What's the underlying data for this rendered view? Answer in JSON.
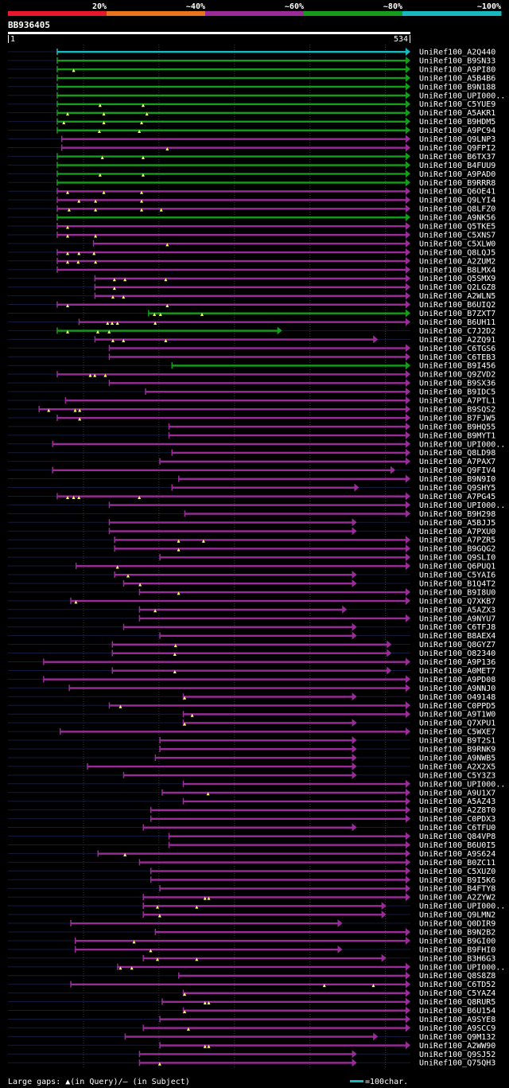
{
  "chart_data": {
    "type": "alignment-overview",
    "query_id": "BB936405",
    "query_length": 534,
    "axis_start_label": "1",
    "axis_end_label": "534",
    "identity_legend": [
      {
        "label": "20%",
        "color": "#e8172d"
      },
      {
        "label": "~40%",
        "color": "#e8741c"
      },
      {
        "label": "~60%",
        "color": "#9a2c9a"
      },
      {
        "label": "~80%",
        "color": "#159c1a"
      },
      {
        "label": "~100%",
        "color": "#19b8c0"
      }
    ],
    "footer_left": "Large gaps: ▲(in Query)/— (in Subject)",
    "footer_right": "=100char.",
    "hits": [
      {
        "id": "UniRef100_A2Q440",
        "start": 66,
        "end": 534,
        "color": "#19b8c0",
        "marks": []
      },
      {
        "id": "UniRef100_B9SN33",
        "start": 66,
        "end": 534,
        "color": "#159c1a",
        "marks": []
      },
      {
        "id": "UniRef100_A9PI80",
        "start": 66,
        "end": 534,
        "color": "#159c1a",
        "marks": [
          88
        ]
      },
      {
        "id": "UniRef100_A5B4B6",
        "start": 66,
        "end": 534,
        "color": "#159c1a",
        "marks": []
      },
      {
        "id": "UniRef100_B9N188",
        "start": 66,
        "end": 534,
        "color": "#159c1a",
        "marks": []
      },
      {
        "id": "UniRef100_UPI000..",
        "start": 66,
        "end": 534,
        "color": "#159c1a",
        "marks": []
      },
      {
        "id": "UniRef100_C5YUE9",
        "start": 66,
        "end": 534,
        "color": "#159c1a",
        "marks": [
          123,
          180
        ]
      },
      {
        "id": "UniRef100_A5AKR1",
        "start": 66,
        "end": 534,
        "color": "#159c1a",
        "marks": [
          80,
          128,
          185
        ]
      },
      {
        "id": "UniRef100_B9HDM5",
        "start": 66,
        "end": 534,
        "color": "#159c1a",
        "marks": [
          75,
          128,
          178
        ]
      },
      {
        "id": "UniRef100_A9PC94",
        "start": 66,
        "end": 534,
        "color": "#159c1a",
        "marks": [
          122,
          175
        ]
      },
      {
        "id": "UniRef100_Q9LNP3",
        "start": 72,
        "end": 534,
        "color": "#9a2c9a",
        "marks": []
      },
      {
        "id": "UniRef100_Q9FPI2",
        "start": 72,
        "end": 534,
        "color": "#9a2c9a",
        "marks": [
          212
        ]
      },
      {
        "id": "UniRef100_B6TX37",
        "start": 66,
        "end": 534,
        "color": "#159c1a",
        "marks": [
          126,
          180
        ]
      },
      {
        "id": "UniRef100_B4FUU9",
        "start": 66,
        "end": 534,
        "color": "#159c1a",
        "marks": []
      },
      {
        "id": "UniRef100_A9PAD0",
        "start": 66,
        "end": 534,
        "color": "#159c1a",
        "marks": [
          123,
          180
        ]
      },
      {
        "id": "UniRef100_B9RRR8",
        "start": 66,
        "end": 534,
        "color": "#159c1a",
        "marks": []
      },
      {
        "id": "UniRef100_Q6OE41",
        "start": 66,
        "end": 534,
        "color": "#9a2c9a",
        "marks": [
          80,
          128,
          178
        ]
      },
      {
        "id": "UniRef100_Q9LYI4",
        "start": 66,
        "end": 534,
        "color": "#9a2c9a",
        "marks": [
          95,
          117,
          178
        ]
      },
      {
        "id": "UniRef100_Q8LFZ0",
        "start": 66,
        "end": 534,
        "color": "#9a2c9a",
        "marks": [
          82,
          117,
          178,
          204
        ]
      },
      {
        "id": "UniRef100_A9NK56",
        "start": 66,
        "end": 534,
        "color": "#159c1a",
        "marks": []
      },
      {
        "id": "UniRef100_Q5TKE5",
        "start": 66,
        "end": 534,
        "color": "#9a2c9a",
        "marks": [
          80
        ]
      },
      {
        "id": "UniRef100_C5XNS7",
        "start": 66,
        "end": 534,
        "color": "#9a2c9a",
        "marks": [
          80,
          117
        ]
      },
      {
        "id": "UniRef100_C5XLW0",
        "start": 114,
        "end": 534,
        "color": "#9a2c9a",
        "marks": [
          212
        ]
      },
      {
        "id": "UniRef100_Q8LQJ5",
        "start": 66,
        "end": 534,
        "color": "#9a2c9a",
        "marks": [
          80,
          95,
          115
        ]
      },
      {
        "id": "UniRef100_A2ZUM2",
        "start": 66,
        "end": 534,
        "color": "#9a2c9a",
        "marks": [
          80,
          94,
          117
        ]
      },
      {
        "id": "UniRef100_B8LMX4",
        "start": 66,
        "end": 534,
        "color": "#9a2c9a",
        "marks": []
      },
      {
        "id": "UniRef100_Q5SMX9",
        "start": 116,
        "end": 534,
        "color": "#9a2c9a",
        "marks": [
          142,
          156,
          210
        ]
      },
      {
        "id": "UniRef100_Q2LGZ8",
        "start": 116,
        "end": 534,
        "color": "#9a2c9a",
        "marks": [
          142
        ]
      },
      {
        "id": "UniRef100_A2WLN5",
        "start": 116,
        "end": 534,
        "color": "#9a2c9a",
        "marks": [
          140,
          154
        ]
      },
      {
        "id": "UniRef100_B6UIQ2",
        "start": 66,
        "end": 534,
        "color": "#9a2c9a",
        "marks": [
          80,
          212
        ]
      },
      {
        "id": "UniRef100_B7ZXT7",
        "start": 187,
        "end": 534,
        "color": "#159c1a",
        "marks": [
          195,
          203,
          258
        ]
      },
      {
        "id": "UniRef100_B6UH11",
        "start": 95,
        "end": 534,
        "color": "#9a2c9a",
        "marks": [
          133,
          139,
          146,
          196
        ]
      },
      {
        "id": "UniRef100_C7J2D2",
        "start": 66,
        "end": 364,
        "color": "#159c1a",
        "marks": [
          80,
          120,
          135
        ]
      },
      {
        "id": "UniRef100_A2ZQ91",
        "start": 116,
        "end": 491,
        "color": "#9a2c9a",
        "marks": [
          140,
          154,
          210
        ]
      },
      {
        "id": "UniRef100_C6TGS6",
        "start": 135,
        "end": 534,
        "color": "#9a2c9a",
        "marks": []
      },
      {
        "id": "UniRef100_C6TEB3",
        "start": 135,
        "end": 534,
        "color": "#9a2c9a",
        "marks": []
      },
      {
        "id": "UniRef100_B9I456",
        "start": 218,
        "end": 534,
        "color": "#159c1a",
        "marks": []
      },
      {
        "id": "UniRef100_Q9ZVD2",
        "start": 66,
        "end": 534,
        "color": "#9a2c9a",
        "marks": [
          110,
          116,
          130
        ]
      },
      {
        "id": "UniRef100_B9SX36",
        "start": 135,
        "end": 534,
        "color": "#9a2c9a",
        "marks": []
      },
      {
        "id": "UniRef100_B9IDC5",
        "start": 183,
        "end": 534,
        "color": "#9a2c9a",
        "marks": []
      },
      {
        "id": "UniRef100_A7PTL1",
        "start": 77,
        "end": 534,
        "color": "#9a2c9a",
        "marks": []
      },
      {
        "id": "UniRef100_B9SQS2",
        "start": 42,
        "end": 534,
        "color": "#9a2c9a",
        "marks": [
          55,
          90,
          96
        ]
      },
      {
        "id": "UniRef100_B7FJW5",
        "start": 66,
        "end": 534,
        "color": "#9a2c9a",
        "marks": [
          96
        ]
      },
      {
        "id": "UniRef100_B9HQ55",
        "start": 214,
        "end": 534,
        "color": "#9a2c9a",
        "marks": []
      },
      {
        "id": "UniRef100_B9MYT1",
        "start": 214,
        "end": 534,
        "color": "#9a2c9a",
        "marks": []
      },
      {
        "id": "UniRef100_UPI000..",
        "start": 60,
        "end": 534,
        "color": "#9a2c9a",
        "marks": []
      },
      {
        "id": "UniRef100_Q8LD98",
        "start": 218,
        "end": 534,
        "color": "#9a2c9a",
        "marks": []
      },
      {
        "id": "UniRef100_A7PAX7",
        "start": 202,
        "end": 534,
        "color": "#9a2c9a",
        "marks": []
      },
      {
        "id": "UniRef100_Q9FIV4",
        "start": 60,
        "end": 514,
        "color": "#9a2c9a",
        "marks": []
      },
      {
        "id": "UniRef100_B9N9I0",
        "start": 227,
        "end": 534,
        "color": "#9a2c9a",
        "marks": []
      },
      {
        "id": "UniRef100_Q9SHY5",
        "start": 218,
        "end": 466,
        "color": "#9a2c9a",
        "marks": []
      },
      {
        "id": "UniRef100_A7PG45",
        "start": 66,
        "end": 534,
        "color": "#9a2c9a",
        "marks": [
          80,
          88,
          95,
          175
        ]
      },
      {
        "id": "UniRef100_UPI000..",
        "start": 135,
        "end": 534,
        "color": "#9a2c9a",
        "marks": []
      },
      {
        "id": "UniRef100_B9H298",
        "start": 235,
        "end": 534,
        "color": "#9a2c9a",
        "marks": []
      },
      {
        "id": "UniRef100_A5BJJ5",
        "start": 135,
        "end": 463,
        "color": "#9a2c9a",
        "marks": []
      },
      {
        "id": "UniRef100_A7PXU0",
        "start": 135,
        "end": 463,
        "color": "#9a2c9a",
        "marks": []
      },
      {
        "id": "UniRef100_A7PZR5",
        "start": 142,
        "end": 534,
        "color": "#9a2c9a",
        "marks": [
          227,
          260
        ]
      },
      {
        "id": "UniRef100_B9GQG2",
        "start": 142,
        "end": 534,
        "color": "#9a2c9a",
        "marks": [
          227
        ]
      },
      {
        "id": "UniRef100_Q9SLI0",
        "start": 202,
        "end": 534,
        "color": "#9a2c9a",
        "marks": []
      },
      {
        "id": "UniRef100_Q6PUQ1",
        "start": 91,
        "end": 534,
        "color": "#9a2c9a",
        "marks": [
          146
        ]
      },
      {
        "id": "UniRef100_C5YAI6",
        "start": 142,
        "end": 463,
        "color": "#9a2c9a",
        "marks": [
          160
        ]
      },
      {
        "id": "UniRef100_B1Q4T2",
        "start": 154,
        "end": 463,
        "color": "#9a2c9a",
        "marks": [
          176
        ]
      },
      {
        "id": "UniRef100_B9I8U0",
        "start": 175,
        "end": 534,
        "color": "#9a2c9a",
        "marks": [
          227
        ]
      },
      {
        "id": "UniRef100_Q7XKB7",
        "start": 84,
        "end": 534,
        "color": "#9a2c9a",
        "marks": [
          91
        ]
      },
      {
        "id": "UniRef100_A5AZX3",
        "start": 175,
        "end": 450,
        "color": "#9a2c9a",
        "marks": [
          196
        ]
      },
      {
        "id": "UniRef100_A9NYU7",
        "start": 175,
        "end": 534,
        "color": "#9a2c9a",
        "marks": []
      },
      {
        "id": "UniRef100_C6TFJ8",
        "start": 154,
        "end": 463,
        "color": "#9a2c9a",
        "marks": []
      },
      {
        "id": "UniRef100_B8AEX4",
        "start": 202,
        "end": 463,
        "color": "#9a2c9a",
        "marks": []
      },
      {
        "id": "UniRef100_Q8GYZ7",
        "start": 139,
        "end": 509,
        "color": "#9a2c9a",
        "marks": [
          223
        ]
      },
      {
        "id": "UniRef100_O82340",
        "start": 139,
        "end": 509,
        "color": "#9a2c9a",
        "marks": [
          222
        ]
      },
      {
        "id": "UniRef100_A9P136",
        "start": 48,
        "end": 534,
        "color": "#9a2c9a",
        "marks": []
      },
      {
        "id": "UniRef100_A0MET7",
        "start": 139,
        "end": 509,
        "color": "#9a2c9a",
        "marks": [
          222
        ]
      },
      {
        "id": "UniRef100_A9PD08",
        "start": 48,
        "end": 534,
        "color": "#9a2c9a",
        "marks": []
      },
      {
        "id": "UniRef100_A9NNJ0",
        "start": 82,
        "end": 534,
        "color": "#9a2c9a",
        "marks": []
      },
      {
        "id": "UniRef100_O49148",
        "start": 233,
        "end": 463,
        "color": "#9a2c9a",
        "marks": [
          235
        ]
      },
      {
        "id": "UniRef100_C0PPD5",
        "start": 135,
        "end": 534,
        "color": "#9a2c9a",
        "marks": [
          150
        ]
      },
      {
        "id": "UniRef100_A9T1W0",
        "start": 233,
        "end": 534,
        "color": "#9a2c9a",
        "marks": [
          245
        ]
      },
      {
        "id": "UniRef100_Q7XPU1",
        "start": 233,
        "end": 463,
        "color": "#9a2c9a",
        "marks": [
          235
        ]
      },
      {
        "id": "UniRef100_C5WXE7",
        "start": 70,
        "end": 534,
        "color": "#9a2c9a",
        "marks": []
      },
      {
        "id": "UniRef100_B9T2S1",
        "start": 202,
        "end": 463,
        "color": "#9a2c9a",
        "marks": []
      },
      {
        "id": "UniRef100_B9RNK9",
        "start": 202,
        "end": 463,
        "color": "#9a2c9a",
        "marks": []
      },
      {
        "id": "UniRef100_A9NWB5",
        "start": 196,
        "end": 463,
        "color": "#9a2c9a",
        "marks": []
      },
      {
        "id": "UniRef100_A2X2X5",
        "start": 106,
        "end": 463,
        "color": "#9a2c9a",
        "marks": []
      },
      {
        "id": "UniRef100_C5Y3Z3",
        "start": 154,
        "end": 463,
        "color": "#9a2c9a",
        "marks": []
      },
      {
        "id": "UniRef100_UPI000..",
        "start": 233,
        "end": 534,
        "color": "#9a2c9a",
        "marks": []
      },
      {
        "id": "UniRef100_A9U1X7",
        "start": 205,
        "end": 534,
        "color": "#9a2c9a",
        "marks": [
          266
        ]
      },
      {
        "id": "UniRef100_A5AZ43",
        "start": 233,
        "end": 534,
        "color": "#9a2c9a",
        "marks": []
      },
      {
        "id": "UniRef100_A2Z8T0",
        "start": 190,
        "end": 534,
        "color": "#9a2c9a",
        "marks": []
      },
      {
        "id": "UniRef100_C0PDX3",
        "start": 190,
        "end": 534,
        "color": "#9a2c9a",
        "marks": []
      },
      {
        "id": "UniRef100_C6TFU0",
        "start": 180,
        "end": 463,
        "color": "#9a2c9a",
        "marks": []
      },
      {
        "id": "UniRef100_Q84VP8",
        "start": 214,
        "end": 534,
        "color": "#9a2c9a",
        "marks": []
      },
      {
        "id": "UniRef100_B6U0I5",
        "start": 214,
        "end": 534,
        "color": "#9a2c9a",
        "marks": []
      },
      {
        "id": "UniRef100_A9S624",
        "start": 120,
        "end": 534,
        "color": "#9a2c9a",
        "marks": [
          156
        ]
      },
      {
        "id": "UniRef100_B0ZC11",
        "start": 175,
        "end": 534,
        "color": "#9a2c9a",
        "marks": []
      },
      {
        "id": "UniRef100_C5XUZ0",
        "start": 190,
        "end": 534,
        "color": "#9a2c9a",
        "marks": []
      },
      {
        "id": "UniRef100_B9I5K6",
        "start": 190,
        "end": 534,
        "color": "#9a2c9a",
        "marks": []
      },
      {
        "id": "UniRef100_B4FTY8",
        "start": 202,
        "end": 534,
        "color": "#9a2c9a",
        "marks": []
      },
      {
        "id": "UniRef100_A2ZYW2",
        "start": 180,
        "end": 534,
        "color": "#9a2c9a",
        "marks": [
          262,
          267
        ]
      },
      {
        "id": "UniRef100_UPI000..",
        "start": 180,
        "end": 502,
        "color": "#9a2c9a",
        "marks": [
          199,
          251
        ]
      },
      {
        "id": "UniRef100_Q9LMN2",
        "start": 180,
        "end": 502,
        "color": "#9a2c9a",
        "marks": [
          202
        ]
      },
      {
        "id": "UniRef100_Q0DIR9",
        "start": 84,
        "end": 444,
        "color": "#9a2c9a",
        "marks": []
      },
      {
        "id": "UniRef100_B9N2B2",
        "start": 196,
        "end": 534,
        "color": "#9a2c9a",
        "marks": []
      },
      {
        "id": "UniRef100_B9GI00",
        "start": 90,
        "end": 534,
        "color": "#9a2c9a",
        "marks": [
          168
        ]
      },
      {
        "id": "UniRef100_B9FHI0",
        "start": 90,
        "end": 444,
        "color": "#9a2c9a",
        "marks": [
          190
        ]
      },
      {
        "id": "UniRef100_B3H6G3",
        "start": 180,
        "end": 502,
        "color": "#9a2c9a",
        "marks": [
          199,
          251
        ]
      },
      {
        "id": "UniRef100_UPI000..",
        "start": 146,
        "end": 534,
        "color": "#9a2c9a",
        "marks": [
          150,
          165
        ]
      },
      {
        "id": "UniRef100_Q8S8Z8",
        "start": 227,
        "end": 534,
        "color": "#9a2c9a",
        "marks": []
      },
      {
        "id": "UniRef100_C6TD52",
        "start": 84,
        "end": 534,
        "color": "#9a2c9a",
        "marks": [
          420,
          485
        ]
      },
      {
        "id": "UniRef100_C5YAZ4",
        "start": 233,
        "end": 534,
        "color": "#9a2c9a",
        "marks": [
          235
        ]
      },
      {
        "id": "UniRef100_Q8RUR5",
        "start": 205,
        "end": 534,
        "color": "#9a2c9a",
        "marks": [
          262,
          267
        ]
      },
      {
        "id": "UniRef100_B6U154",
        "start": 233,
        "end": 534,
        "color": "#9a2c9a",
        "marks": [
          235
        ]
      },
      {
        "id": "UniRef100_A9SYE8",
        "start": 202,
        "end": 534,
        "color": "#9a2c9a",
        "marks": []
      },
      {
        "id": "UniRef100_A9SCC9",
        "start": 180,
        "end": 534,
        "color": "#9a2c9a",
        "marks": [
          240
        ]
      },
      {
        "id": "UniRef100_Q9M132",
        "start": 156,
        "end": 491,
        "color": "#9a2c9a",
        "marks": []
      },
      {
        "id": "UniRef100_A2WW90",
        "start": 202,
        "end": 534,
        "color": "#9a2c9a",
        "marks": [
          262,
          267
        ]
      },
      {
        "id": "UniRef100_Q9SJ52",
        "start": 175,
        "end": 463,
        "color": "#9a2c9a",
        "marks": []
      },
      {
        "id": "UniRef100_Q75QH3",
        "start": 175,
        "end": 463,
        "color": "#9a2c9a",
        "marks": [
          202
        ]
      }
    ]
  }
}
